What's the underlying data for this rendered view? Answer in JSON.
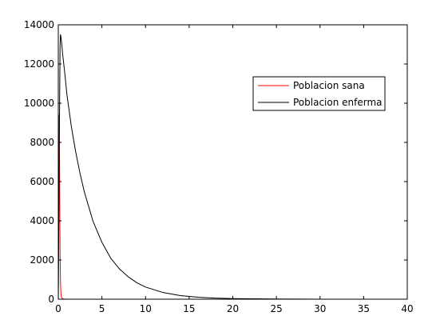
{
  "chart_data": {
    "type": "line",
    "title": "",
    "xlabel": "",
    "ylabel": "",
    "xlim": [
      0,
      40
    ],
    "ylim": [
      0,
      14000
    ],
    "x_ticks": [
      0,
      5,
      10,
      15,
      20,
      25,
      30,
      35,
      40
    ],
    "x_tick_labels": [
      "0",
      "5",
      "10",
      "15",
      "20",
      "25",
      "30",
      "35",
      "40"
    ],
    "y_ticks": [
      0,
      2000,
      4000,
      6000,
      8000,
      10000,
      12000,
      14000
    ],
    "y_tick_labels": [
      "0",
      "2000",
      "4000",
      "6000",
      "8000",
      "10000",
      "12000",
      "14000"
    ],
    "grid": false,
    "legend_position": "top-right",
    "series": [
      {
        "name": "Poblacion sana",
        "color": "#ff0000",
        "x": [
          0,
          0.05,
          0.1,
          0.15,
          0.2,
          0.25,
          0.3,
          0.35,
          0.4,
          0.5,
          0.6,
          0.8,
          1.0,
          1.5,
          2,
          5,
          10,
          20,
          30,
          40
        ],
        "y": [
          0,
          3000,
          9400,
          6000,
          2500,
          900,
          300,
          120,
          60,
          25,
          10,
          5,
          2,
          1,
          0,
          0,
          0,
          0,
          0,
          0
        ]
      },
      {
        "name": "Poblacion enferma",
        "color": "#000000",
        "x": [
          0,
          0.1,
          0.2,
          0.25,
          0.3,
          0.4,
          0.5,
          0.75,
          1,
          1.5,
          2,
          2.5,
          3,
          4,
          5,
          6,
          7,
          8,
          9,
          10,
          12,
          14,
          16,
          18,
          20,
          25,
          30,
          35,
          40
        ],
        "y": [
          0,
          7000,
          12800,
          13500,
          13400,
          13000,
          12500,
          11500,
          10400,
          8800,
          7500,
          6400,
          5450,
          3950,
          2900,
          2100,
          1550,
          1150,
          840,
          620,
          340,
          185,
          100,
          55,
          30,
          8,
          2,
          1,
          0
        ]
      }
    ]
  }
}
